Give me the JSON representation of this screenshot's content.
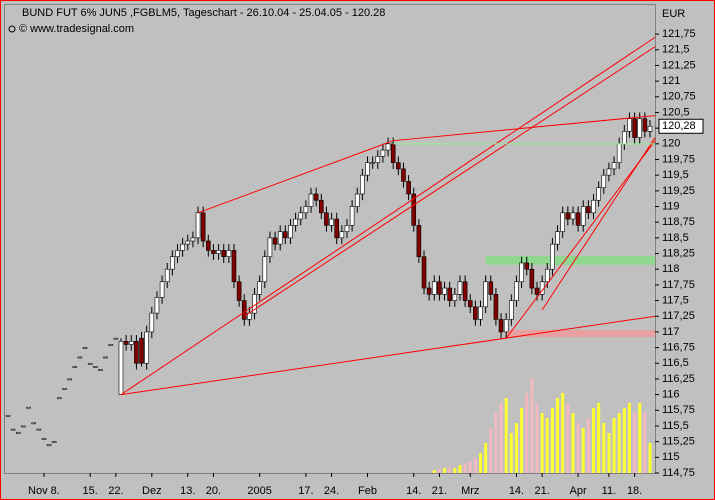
{
  "chart_data": {
    "type": "candlestick",
    "title": "BUND FUT 6% JUN5 ,FGBLM5, Tageschart - 26.10.04 - 25.04.05 - 120.28",
    "subtitle": "© www.tradesignal.com",
    "unit": "EUR",
    "categories": [
      null,
      null,
      null,
      null,
      null,
      null,
      null,
      "Nov 8.",
      null,
      null,
      null,
      null,
      null,
      null,
      null,
      null,
      "15.",
      null,
      null,
      null,
      null,
      "22.",
      null,
      null,
      null,
      null,
      null,
      null,
      "Dez",
      null,
      null,
      null,
      null,
      null,
      null,
      "13.",
      null,
      null,
      null,
      null,
      "20.",
      null,
      null,
      null,
      null,
      null,
      null,
      null,
      null,
      "2005",
      null,
      null,
      null,
      null,
      null,
      null,
      null,
      null,
      "17.",
      null,
      null,
      null,
      null,
      "24.",
      null,
      null,
      null,
      null,
      null,
      null,
      "Feb",
      null,
      null,
      null,
      null,
      null,
      null,
      null,
      null,
      "14.",
      null,
      null,
      null,
      null,
      "21.",
      null,
      null,
      null,
      null,
      null,
      "Mrz",
      null,
      null,
      null,
      null,
      null,
      null,
      null,
      null,
      "14.",
      null,
      null,
      null,
      null,
      "21.",
      null,
      null,
      null,
      null,
      null,
      null,
      "Apr",
      null,
      null,
      null,
      null,
      null,
      "11.",
      null,
      null,
      null,
      null,
      "18.",
      null,
      null,
      null
    ],
    "open": [
      115.67,
      115.45,
      115.4,
      115.5,
      115.8,
      115.55,
      115.45,
      115.3,
      115.2,
      115.25,
      115.95,
      116.1,
      116.25,
      116.45,
      116.6,
      116.75,
      116.5,
      116.45,
      116.4,
      116.6,
      116.8,
      116.9,
      116.0,
      116.85,
      116.8,
      116.85,
      116.9,
      116.5,
      117.0,
      117.3,
      117.55,
      117.8,
      118.0,
      118.2,
      118.3,
      118.4,
      118.45,
      118.5,
      118.9,
      118.45,
      118.3,
      118.25,
      118.3,
      118.2,
      118.3,
      117.8,
      117.5,
      117.2,
      117.3,
      117.6,
      117.8,
      118.2,
      118.5,
      118.4,
      118.6,
      118.5,
      118.7,
      118.8,
      118.9,
      119.0,
      119.2,
      119.1,
      118.9,
      118.7,
      118.8,
      118.5,
      118.6,
      118.7,
      119.0,
      119.2,
      119.5,
      119.7,
      119.7,
      119.8,
      119.9,
      120.0,
      119.7,
      119.6,
      119.4,
      119.2,
      118.7,
      118.2,
      117.7,
      117.6,
      117.8,
      117.6,
      117.7,
      117.5,
      117.6,
      117.8,
      117.5,
      117.4,
      117.2,
      117.4,
      117.8,
      117.6,
      117.2,
      117.0,
      117.2,
      117.5,
      117.8,
      118.1,
      118.0,
      117.7,
      117.6,
      117.8,
      118.0,
      118.4,
      118.6,
      118.9,
      118.8,
      118.9,
      118.7,
      119.0,
      118.9,
      119.1,
      119.3,
      119.5,
      119.6,
      119.7,
      120.0,
      120.2,
      120.4,
      120.1,
      120.4,
      120.2
    ],
    "high": [
      115.67,
      115.45,
      115.4,
      115.5,
      115.8,
      115.55,
      115.45,
      115.3,
      115.2,
      115.25,
      115.95,
      116.1,
      116.25,
      116.45,
      116.6,
      116.75,
      116.5,
      116.45,
      116.4,
      116.6,
      116.8,
      116.9,
      116.9,
      116.95,
      116.95,
      116.95,
      117.0,
      117.1,
      117.4,
      117.65,
      117.9,
      118.1,
      118.3,
      118.4,
      118.5,
      118.55,
      118.6,
      119.0,
      119.0,
      118.55,
      118.4,
      118.4,
      118.4,
      118.4,
      118.4,
      117.9,
      117.6,
      117.4,
      117.7,
      117.9,
      118.3,
      118.6,
      118.6,
      118.7,
      118.7,
      118.8,
      118.9,
      119.0,
      119.1,
      119.3,
      119.3,
      119.2,
      119.0,
      118.9,
      118.9,
      118.7,
      118.8,
      119.1,
      119.3,
      119.6,
      119.8,
      119.8,
      119.9,
      120.0,
      120.1,
      120.1,
      119.8,
      119.7,
      119.5,
      119.3,
      118.8,
      118.3,
      117.8,
      117.9,
      117.9,
      117.8,
      117.8,
      117.7,
      117.9,
      117.9,
      117.6,
      117.5,
      117.5,
      117.9,
      117.9,
      117.7,
      117.3,
      117.3,
      117.6,
      117.9,
      118.2,
      118.2,
      118.1,
      117.8,
      117.9,
      118.1,
      118.5,
      118.7,
      119.0,
      119.0,
      119.0,
      119.0,
      119.1,
      119.1,
      119.2,
      119.4,
      119.6,
      119.7,
      119.8,
      120.1,
      120.3,
      120.5,
      120.5,
      120.5,
      120.5,
      120.38
    ],
    "low": [
      115.67,
      115.45,
      115.4,
      115.5,
      115.8,
      115.55,
      115.45,
      115.3,
      115.2,
      115.25,
      115.95,
      116.1,
      116.25,
      116.45,
      116.6,
      116.75,
      116.5,
      116.45,
      116.4,
      116.6,
      116.8,
      116.9,
      116.0,
      116.7,
      116.7,
      116.4,
      116.45,
      116.4,
      116.9,
      117.2,
      117.45,
      117.7,
      117.9,
      118.1,
      118.2,
      118.3,
      118.35,
      118.4,
      118.35,
      118.2,
      118.15,
      118.15,
      118.1,
      118.1,
      117.7,
      117.4,
      117.1,
      117.1,
      117.2,
      117.5,
      117.7,
      118.1,
      118.3,
      118.3,
      118.4,
      118.4,
      118.6,
      118.7,
      118.8,
      118.9,
      119.0,
      118.8,
      118.6,
      118.6,
      118.4,
      118.4,
      118.5,
      118.6,
      118.9,
      119.1,
      119.4,
      119.6,
      119.6,
      119.7,
      119.8,
      119.6,
      119.5,
      119.3,
      119.1,
      118.6,
      118.1,
      117.6,
      117.5,
      117.5,
      117.5,
      117.5,
      117.4,
      117.4,
      117.5,
      117.4,
      117.3,
      117.1,
      117.1,
      117.3,
      117.5,
      117.1,
      116.9,
      116.9,
      117.1,
      117.4,
      117.7,
      117.9,
      117.6,
      117.5,
      117.5,
      117.7,
      117.9,
      118.3,
      118.5,
      118.7,
      118.7,
      118.6,
      118.6,
      118.8,
      118.8,
      119.0,
      119.2,
      119.4,
      119.5,
      119.6,
      119.9,
      120.1,
      120.0,
      120.0,
      120.1,
      120.1
    ],
    "close": [
      115.67,
      115.45,
      115.4,
      115.5,
      115.8,
      115.55,
      115.45,
      115.3,
      115.2,
      115.25,
      115.95,
      116.1,
      116.25,
      116.45,
      116.6,
      116.75,
      116.5,
      116.45,
      116.4,
      116.6,
      116.8,
      116.9,
      116.85,
      116.8,
      116.85,
      116.5,
      116.5,
      117.0,
      117.3,
      117.55,
      117.8,
      118.0,
      118.2,
      118.3,
      118.4,
      118.45,
      118.5,
      118.9,
      118.45,
      118.3,
      118.25,
      118.3,
      118.2,
      118.3,
      117.8,
      117.5,
      117.2,
      117.3,
      117.6,
      117.8,
      118.2,
      118.5,
      118.4,
      118.6,
      118.5,
      118.7,
      118.8,
      118.9,
      119.0,
      119.2,
      119.1,
      118.9,
      118.7,
      118.8,
      118.5,
      118.6,
      118.7,
      119.0,
      119.2,
      119.5,
      119.7,
      119.7,
      119.8,
      119.9,
      120.0,
      119.7,
      119.6,
      119.4,
      119.2,
      118.7,
      118.2,
      117.7,
      117.6,
      117.8,
      117.6,
      117.7,
      117.5,
      117.6,
      117.8,
      117.5,
      117.4,
      117.2,
      117.4,
      117.8,
      117.6,
      117.2,
      117.0,
      117.2,
      117.5,
      117.8,
      118.1,
      118.0,
      117.7,
      117.6,
      117.8,
      118.0,
      118.4,
      118.6,
      118.9,
      118.8,
      118.9,
      118.7,
      119.0,
      118.9,
      119.1,
      119.3,
      119.5,
      119.6,
      119.7,
      120.0,
      120.2,
      120.4,
      120.1,
      120.4,
      120.2,
      120.28
    ],
    "volume": [
      null,
      null,
      null,
      null,
      null,
      null,
      null,
      null,
      null,
      null,
      null,
      null,
      null,
      null,
      null,
      null,
      null,
      null,
      null,
      null,
      null,
      null,
      null,
      null,
      null,
      null,
      null,
      null,
      null,
      null,
      null,
      null,
      null,
      null,
      null,
      null,
      null,
      null,
      null,
      null,
      null,
      null,
      null,
      null,
      null,
      null,
      null,
      null,
      null,
      null,
      null,
      null,
      null,
      null,
      null,
      null,
      null,
      null,
      null,
      null,
      null,
      null,
      null,
      null,
      null,
      null,
      null,
      null,
      null,
      null,
      null,
      null,
      null,
      null,
      null,
      null,
      null,
      null,
      null,
      null,
      null,
      null,
      null,
      3,
      4,
      5,
      6,
      5,
      8,
      10,
      12,
      15,
      20,
      30,
      45,
      60,
      70,
      75,
      40,
      50,
      65,
      80,
      95,
      70,
      60,
      55,
      65,
      75,
      80,
      70,
      60,
      50,
      45,
      55,
      65,
      70,
      50,
      40,
      55,
      60,
      65,
      70,
      60,
      70,
      60,
      30
    ],
    "up_color": "#ffffff",
    "down_color": "#800000",
    "volume_up_color": "#ffff33",
    "volume_down_color": "#f4b8c0",
    "ylim": [
      114.75,
      122.23
    ],
    "yticks": [
      {
        "value": 114.75,
        "label": "114,75"
      },
      {
        "value": 115,
        "label": "115"
      },
      {
        "value": 115.25,
        "label": "115,25"
      },
      {
        "value": 115.5,
        "label": "115,5"
      },
      {
        "value": 115.75,
        "label": "115,75"
      },
      {
        "value": 116,
        "label": "116"
      },
      {
        "value": 116.25,
        "label": "116,25"
      },
      {
        "value": 116.5,
        "label": "116,5"
      },
      {
        "value": 116.75,
        "label": "116,75"
      },
      {
        "value": 117,
        "label": "117"
      },
      {
        "value": 117.25,
        "label": "117,25"
      },
      {
        "value": 117.5,
        "label": "117,5"
      },
      {
        "value": 117.75,
        "label": "117,75"
      },
      {
        "value": 118,
        "label": "118"
      },
      {
        "value": 118.25,
        "label": "118,25"
      },
      {
        "value": 118.5,
        "label": "118,5"
      },
      {
        "value": 118.75,
        "label": "118,75"
      },
      {
        "value": 119,
        "label": "119"
      },
      {
        "value": 119.25,
        "label": "119,25"
      },
      {
        "value": 119.5,
        "label": "119,5"
      },
      {
        "value": 119.75,
        "label": "119,75"
      },
      {
        "value": 120,
        "label": "120"
      },
      {
        "value": 120.25,
        "label": "120,25"
      },
      {
        "value": 120.5,
        "label": "120,5"
      },
      {
        "value": 120.75,
        "label": "120,75"
      },
      {
        "value": 121,
        "label": "121"
      },
      {
        "value": 121.25,
        "label": "121,25"
      },
      {
        "value": 121.5,
        "label": "121,5"
      },
      {
        "value": 121.75,
        "label": "121,75"
      }
    ],
    "last_price": {
      "value": 120.28,
      "label": "120,28"
    },
    "lines": [
      {
        "start": [
          22,
          116.0
        ],
        "end": [
          126,
          121.7
        ],
        "color": "#ff0000"
      },
      {
        "start": [
          22,
          116.0
        ],
        "end": [
          126,
          117.25
        ],
        "color": "#ff0000"
      },
      {
        "start": [
          37,
          118.9
        ],
        "end": [
          75,
          120.05
        ],
        "color": "#ff0000"
      },
      {
        "start": [
          75,
          120.05
        ],
        "end": [
          126,
          120.45
        ],
        "color": "#ff0000"
      },
      {
        "start": [
          46,
          117.25
        ],
        "end": [
          126,
          121.55
        ],
        "color": "#ff0000"
      },
      {
        "start": [
          97,
          116.9
        ],
        "end": [
          126,
          120.05
        ],
        "color": "#ff0000"
      },
      {
        "start": [
          104,
          117.35
        ],
        "end": [
          126,
          120.1
        ],
        "color": "#ff0000"
      },
      {
        "start": [
          75,
          120.0
        ],
        "end": [
          126,
          120.0
        ],
        "color": "#90ee90"
      }
    ],
    "bands": [
      {
        "start": 93,
        "end": 126,
        "low": 118.07,
        "high": 118.21,
        "color": "#90d890"
      },
      {
        "start": 97,
        "end": 126,
        "low": 116.92,
        "high": 117.03,
        "color": "#e8a0a0"
      }
    ]
  }
}
